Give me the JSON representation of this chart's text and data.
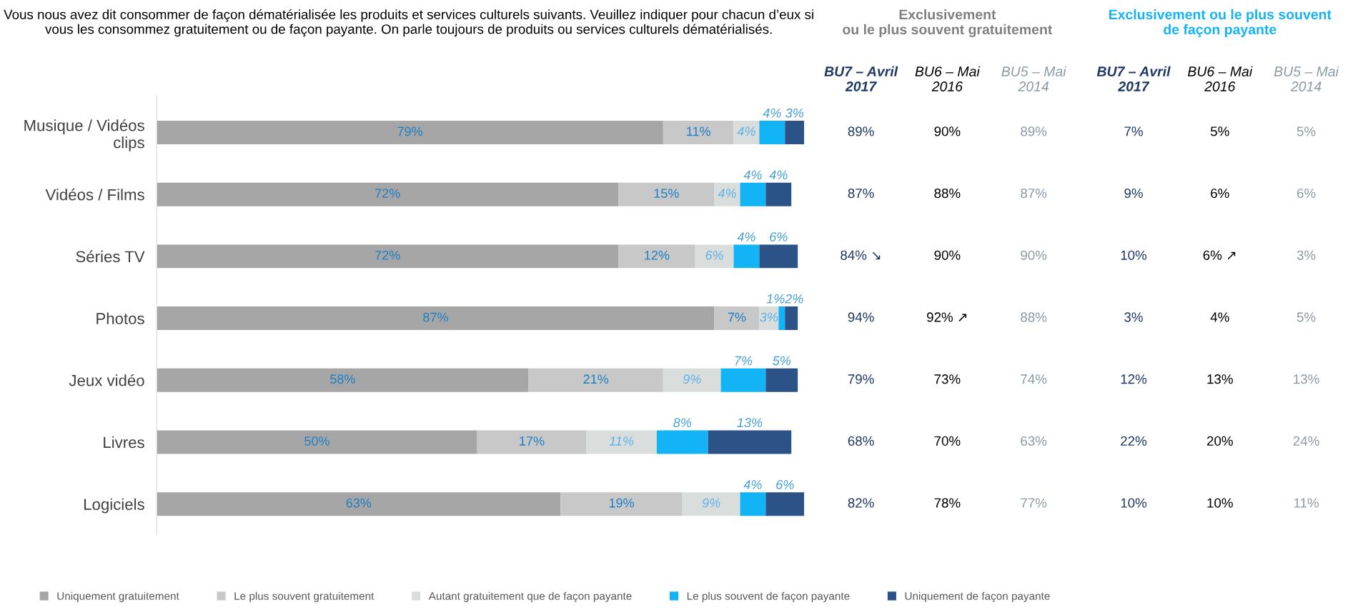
{
  "chart_data": [
    {
      "type": "bar",
      "orientation": "horizontal",
      "stacked": true,
      "title": "Vous nous avez dit consommer de façon dématérialisée les produits et services culturels suivants. Veuillez indiquer pour chacun d’eux si vous les consommez gratuitement ou de façon payante. On parle toujours de produits ou services culturels dématérialisés.",
      "categories": [
        "Musique / Vidéos\nclips",
        "Vidéos / Films",
        "Séries TV",
        "Photos",
        "Jeux vidéo",
        "Livres",
        "Logiciels"
      ],
      "legend": "bottom",
      "series": [
        {
          "name": "Uniquement gratuitement",
          "color": "#a6a6a6",
          "values": [
            79,
            72,
            72,
            87,
            58,
            50,
            63
          ],
          "value_labels": [
            "79%",
            "72%",
            "72%",
            "87%",
            "58%",
            "50%",
            "63%"
          ]
        },
        {
          "name": "Le plus souvent gratuitement",
          "color": "#c8c8c8",
          "values": [
            11,
            15,
            12,
            7,
            21,
            17,
            19
          ],
          "value_labels": [
            "11%",
            "15%",
            "12%",
            "7%",
            "21%",
            "17%",
            "19%"
          ]
        },
        {
          "name": "Autant gratuitement que de façon payante",
          "color": "#d9dedd",
          "values": [
            4,
            4,
            6,
            3,
            9,
            11,
            9
          ],
          "value_labels": [
            "4%",
            "4%",
            "6%",
            "3%",
            "9%",
            "11%",
            "9%"
          ]
        },
        {
          "name": "Le plus souvent de façon payante",
          "color": "#12b4f6",
          "values": [
            4,
            4,
            4,
            1,
            7,
            8,
            4
          ],
          "value_labels": [
            "4%",
            "4%",
            "4%",
            "1%",
            "7%",
            "8%",
            "4%"
          ]
        },
        {
          "name": "Uniquement de façon payante",
          "color": "#2b5387",
          "values": [
            3,
            4,
            6,
            2,
            5,
            13,
            6
          ],
          "value_labels": [
            "3%",
            "4%",
            "6%",
            "2%",
            "5%",
            "13%",
            "6%"
          ]
        }
      ]
    },
    {
      "type": "other",
      "title": "Exclusivement\nou le plus souvent gratuitement",
      "categories": [
        "BU7 – Avril\n2017",
        "BU6 – Mai\n2016",
        "BU5 – Mai\n2014"
      ],
      "colors": [
        "#1f3864",
        "#000000",
        "#8a9aa5"
      ],
      "cell_labels": [
        [
          "89%",
          "90%",
          "89%"
        ],
        [
          "87%",
          "88%",
          "87%"
        ],
        [
          "84% ↘",
          "90%",
          "90%"
        ],
        [
          "94%",
          "92% ↗",
          "88%"
        ],
        [
          "79%",
          "73%",
          "74%"
        ],
        [
          "68%",
          "70%",
          "63%"
        ],
        [
          "82%",
          "78%",
          "77%"
        ]
      ]
    },
    {
      "type": "other",
      "title": "Exclusivement ou le plus souvent\nde façon payante",
      "categories": [
        "BU7 – Avril\n2017",
        "BU6 – Mai\n2016",
        "BU5 – Mai\n2014"
      ],
      "colors": [
        "#1f3864",
        "#000000",
        "#8a9aa5"
      ],
      "cell_labels": [
        [
          "7%",
          "5%",
          "5%"
        ],
        [
          "9%",
          "6%",
          "6%"
        ],
        [
          "10%",
          "6% ↗",
          "3%"
        ],
        [
          "3%",
          "4%",
          "5%"
        ],
        [
          "12%",
          "13%",
          "13%"
        ],
        [
          "22%",
          "20%",
          "24%"
        ],
        [
          "10%",
          "10%",
          "11%"
        ]
      ]
    }
  ]
}
